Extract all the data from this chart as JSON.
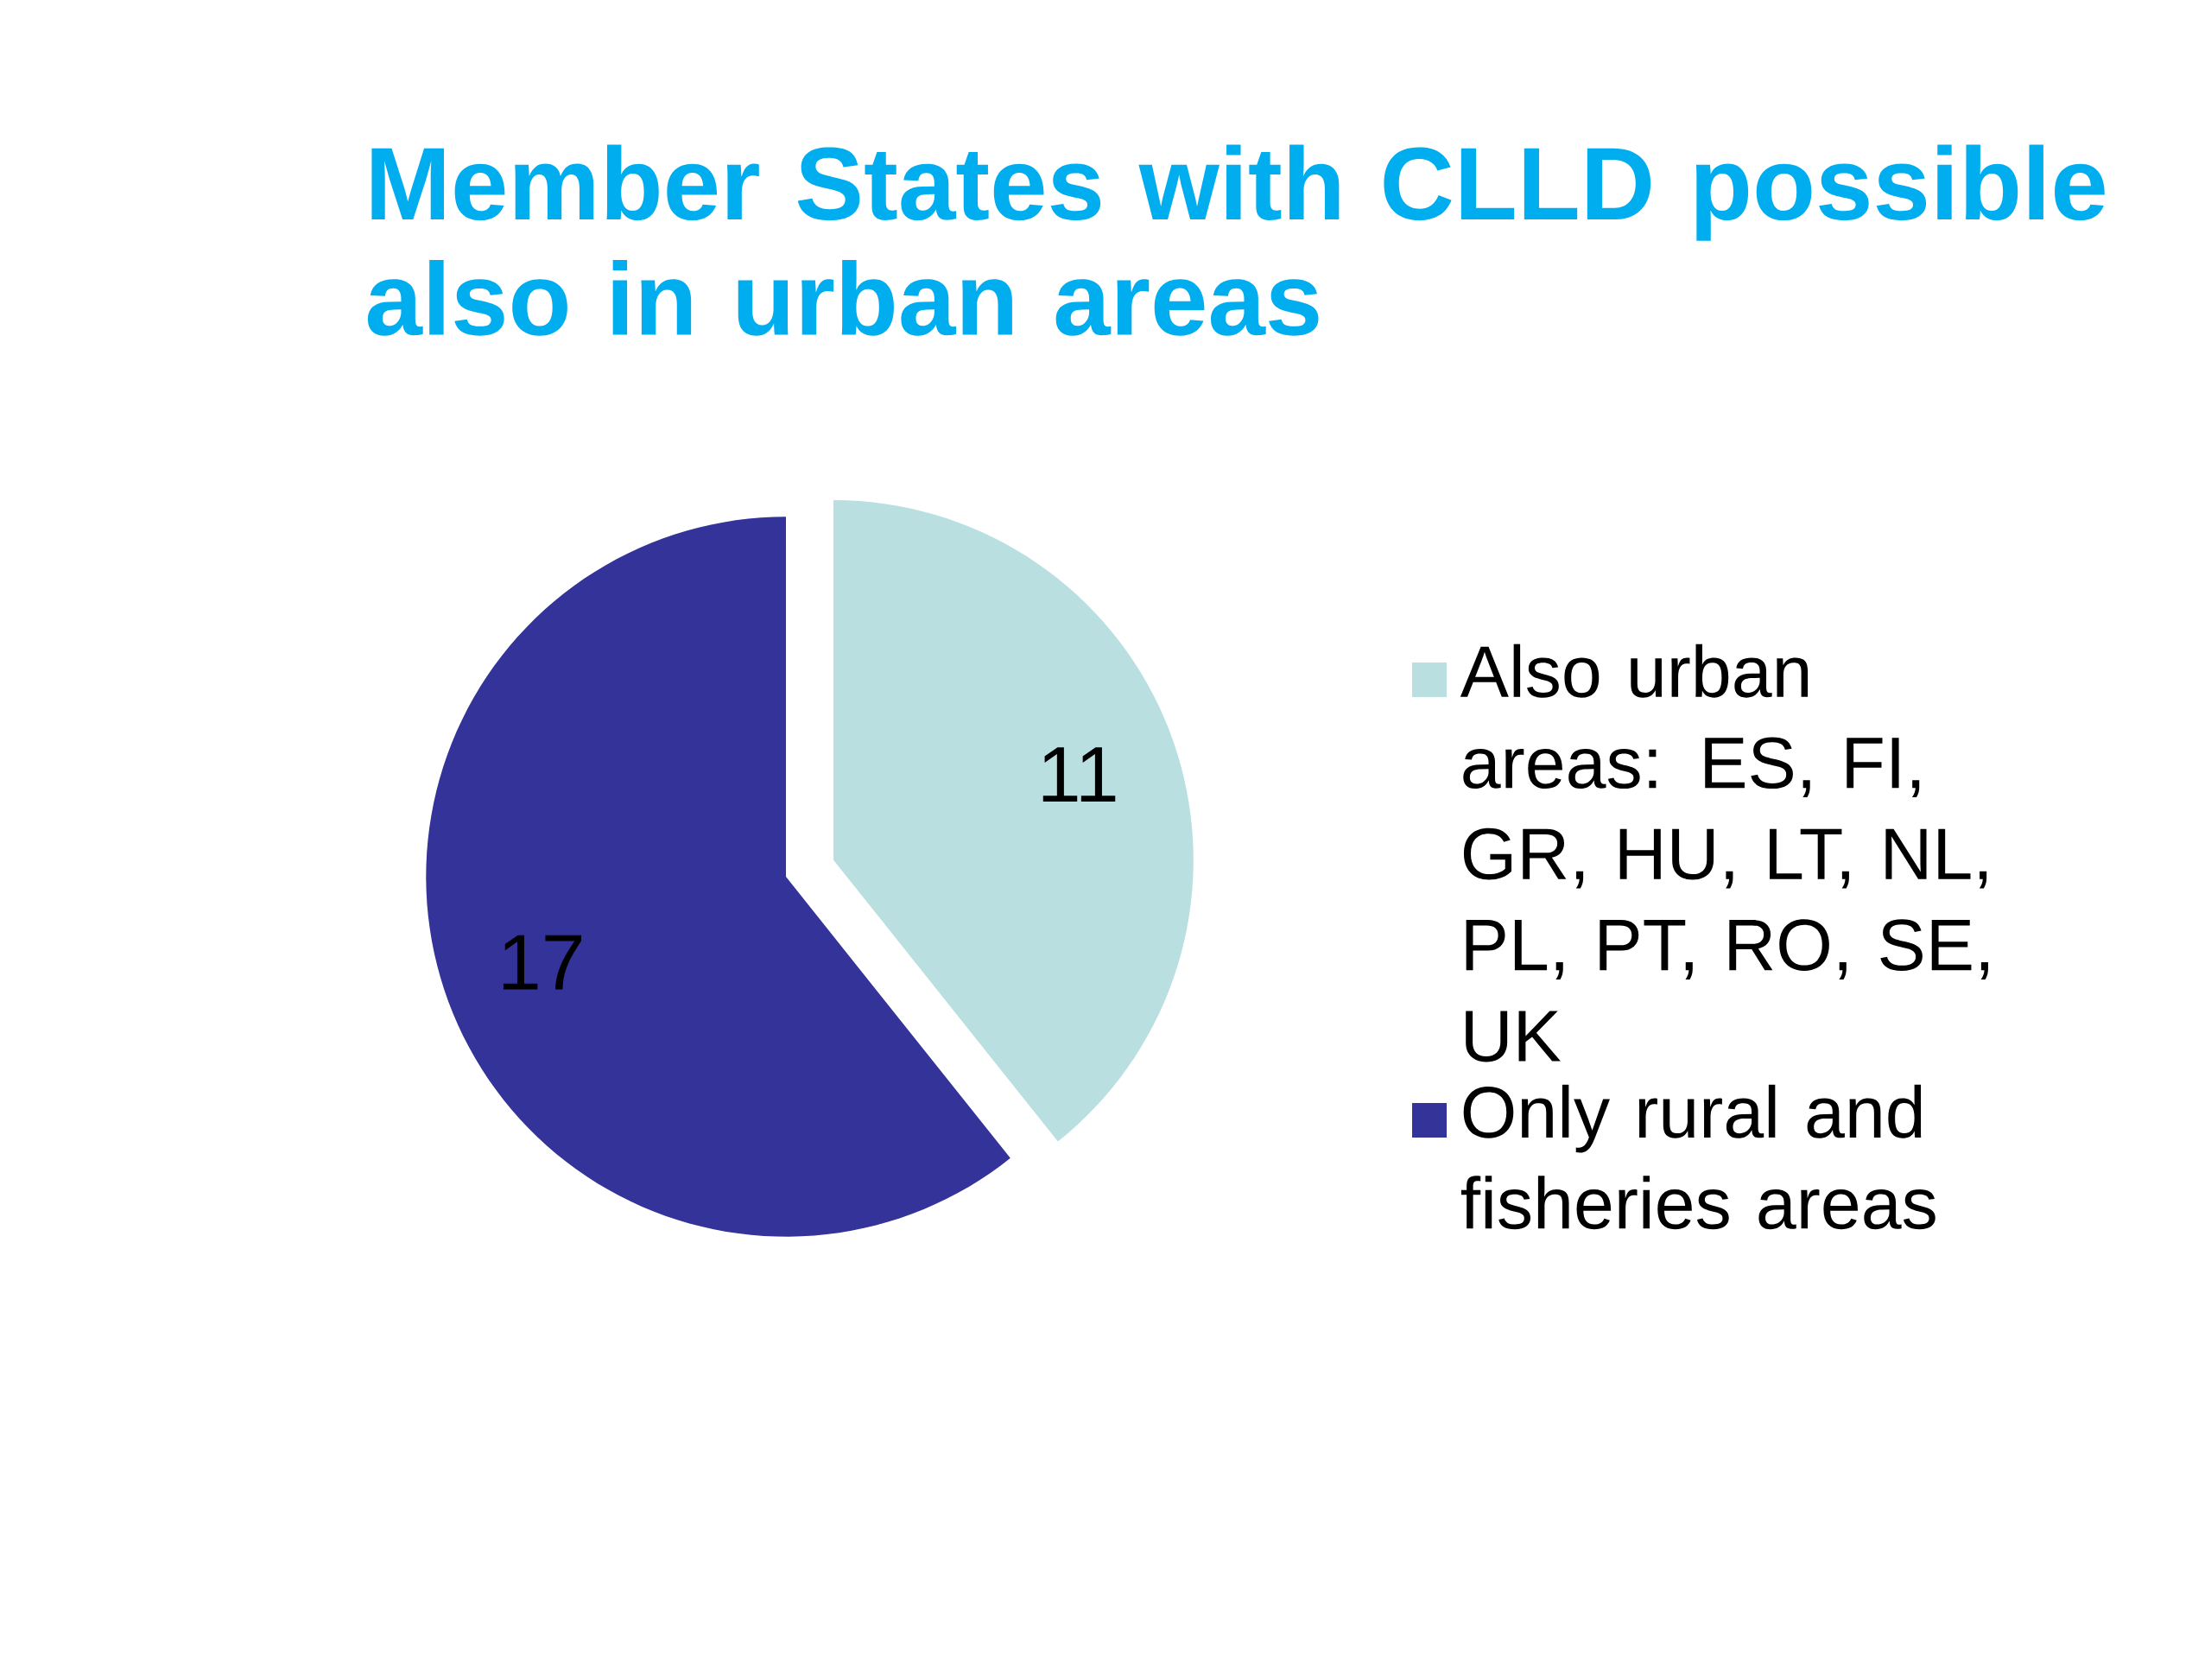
{
  "chart_data": {
    "type": "pie",
    "title": "Member States with CLLD possible also in urban areas",
    "categories": [
      "Also urban areas: ES, FI, GR, HU, LT, NL, PL, PT, RO, SE, UK",
      "Only rural and fisheries areas"
    ],
    "values": [
      11,
      17
    ],
    "colors": [
      "#b9dfe0",
      "#333399"
    ],
    "data_labels": true,
    "legend": "right"
  }
}
